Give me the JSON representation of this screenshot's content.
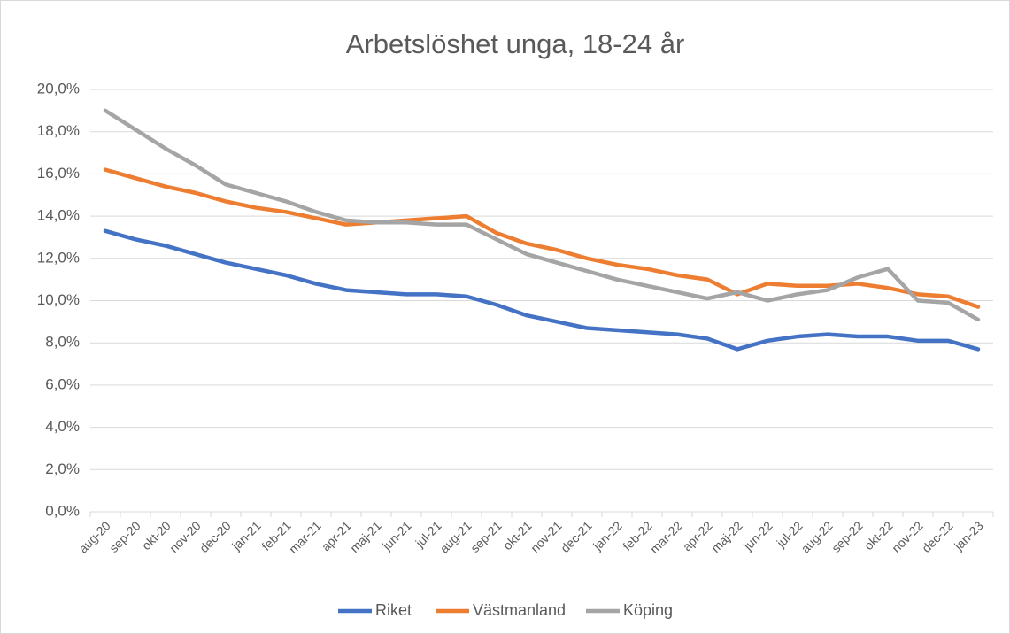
{
  "chart_data": {
    "type": "line",
    "title": "Arbetslöshet unga, 18-24 år",
    "categories": [
      "aug-20",
      "sep-20",
      "okt-20",
      "nov-20",
      "dec-20",
      "jan-21",
      "feb-21",
      "mar-21",
      "apr-21",
      "maj-21",
      "jun-21",
      "jul-21",
      "aug-21",
      "sep-21",
      "okt-21",
      "nov-21",
      "dec-21",
      "jan-22",
      "feb-22",
      "mar-22",
      "apr-22",
      "maj-22",
      "jun-22",
      "jul-22",
      "aug-22",
      "sep-22",
      "okt-22",
      "nov-22",
      "dec-22",
      "jan-23"
    ],
    "series": [
      {
        "name": "Riket",
        "color": "#4472c4",
        "values": [
          13.3,
          12.9,
          12.6,
          12.2,
          11.8,
          11.5,
          11.2,
          10.8,
          10.5,
          10.4,
          10.3,
          10.3,
          10.2,
          9.8,
          9.3,
          9.0,
          8.7,
          8.6,
          8.5,
          8.4,
          8.2,
          7.7,
          8.1,
          8.3,
          8.4,
          8.3,
          8.3,
          8.1,
          8.1,
          7.7
        ]
      },
      {
        "name": "Västmanland",
        "color": "#ed7d31",
        "values": [
          16.2,
          15.8,
          15.4,
          15.1,
          14.7,
          14.4,
          14.2,
          13.9,
          13.6,
          13.7,
          13.8,
          13.9,
          14.0,
          13.2,
          12.7,
          12.4,
          12.0,
          11.7,
          11.5,
          11.2,
          11.0,
          10.3,
          10.8,
          10.7,
          10.7,
          10.8,
          10.6,
          10.3,
          10.2,
          9.7
        ]
      },
      {
        "name": "Köping",
        "color": "#a5a5a5",
        "values": [
          19.0,
          18.1,
          17.2,
          16.4,
          15.5,
          15.1,
          14.7,
          14.2,
          13.8,
          13.7,
          13.7,
          13.6,
          13.6,
          12.9,
          12.2,
          11.8,
          11.4,
          11.0,
          10.7,
          10.4,
          10.1,
          10.4,
          10.0,
          10.3,
          10.5,
          11.1,
          11.5,
          10.0,
          9.9,
          9.1
        ]
      }
    ],
    "ylim": [
      0,
      20
    ],
    "yticks": [
      {
        "value": 0,
        "label": "0,0%"
      },
      {
        "value": 2,
        "label": "2,0%"
      },
      {
        "value": 4,
        "label": "4,0%"
      },
      {
        "value": 6,
        "label": "6,0%"
      },
      {
        "value": 8,
        "label": "8,0%"
      },
      {
        "value": 10,
        "label": "10,0%"
      },
      {
        "value": 12,
        "label": "12,0%"
      },
      {
        "value": 14,
        "label": "14,0%"
      },
      {
        "value": 16,
        "label": "16,0%"
      },
      {
        "value": 18,
        "label": "18,0%"
      },
      {
        "value": 20,
        "label": "20,0%"
      }
    ],
    "grid": true,
    "legend": "bottom"
  }
}
